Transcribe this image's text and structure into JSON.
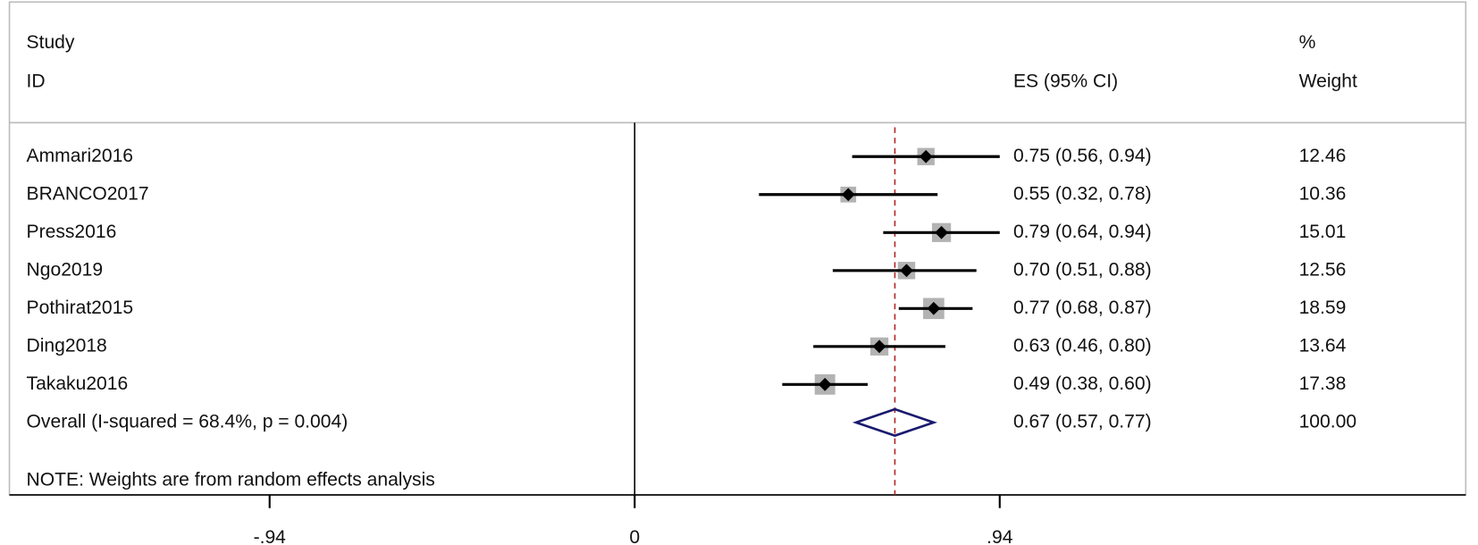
{
  "chart_data": {
    "type": "forest",
    "header": {
      "study": "Study",
      "id": "ID",
      "es": "ES (95% CI)",
      "pct": "%",
      "weight": "Weight"
    },
    "rows": [
      {
        "study": "Ammari2016",
        "es": 0.75,
        "lci": 0.56,
        "uci": 0.94,
        "ci_label": "0.75 (0.56, 0.94)",
        "weight": 12.46
      },
      {
        "study": "BRANCO2017",
        "es": 0.55,
        "lci": 0.32,
        "uci": 0.78,
        "ci_label": "0.55 (0.32, 0.78)",
        "weight": 10.36
      },
      {
        "study": "Press2016",
        "es": 0.79,
        "lci": 0.64,
        "uci": 0.94,
        "ci_label": "0.79 (0.64, 0.94)",
        "weight": 15.01
      },
      {
        "study": "Ngo2019",
        "es": 0.7,
        "lci": 0.51,
        "uci": 0.88,
        "ci_label": "0.70 (0.51, 0.88)",
        "weight": 12.56
      },
      {
        "study": "Pothirat2015",
        "es": 0.77,
        "lci": 0.68,
        "uci": 0.87,
        "ci_label": "0.77 (0.68, 0.87)",
        "weight": 18.59
      },
      {
        "study": "Ding2018",
        "es": 0.63,
        "lci": 0.46,
        "uci": 0.8,
        "ci_label": "0.63 (0.46, 0.80)",
        "weight": 13.64
      },
      {
        "study": "Takaku2016",
        "es": 0.49,
        "lci": 0.38,
        "uci": 0.6,
        "ci_label": "0.49 (0.38, 0.60)",
        "weight": 17.38
      }
    ],
    "overall": {
      "label": "Overall  (I-squared = 68.4%, p = 0.004)",
      "es": 0.67,
      "lci": 0.57,
      "uci": 0.77,
      "ci_label": "0.67 (0.57, 0.77)",
      "weight_label": "100.00"
    },
    "note": "NOTE: Weights are from random effects analysis",
    "xlim": [
      -1.61,
      2.14
    ],
    "xticks": [
      {
        "value": -0.94,
        "label": "-.94"
      },
      0,
      {
        "value": 0.94,
        "label": ".94"
      }
    ],
    "colors": {
      "box": "#b3b3b3",
      "point": "#000000",
      "diamond": "#1a1a6e",
      "ref_line": "#b22222"
    }
  }
}
